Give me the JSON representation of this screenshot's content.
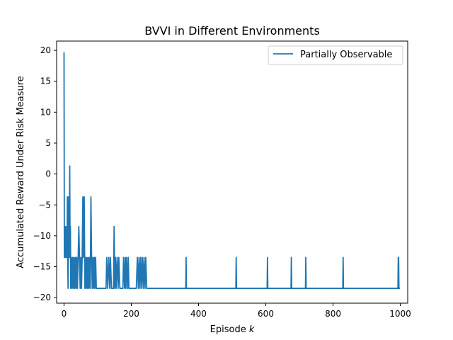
{
  "chart_data": {
    "type": "line",
    "title": "BVVI in Different Environments",
    "xlabel_prefix": "Episode ",
    "xlabel_var": "k",
    "ylabel": "Accumulated Reward Under Risk Measure",
    "xlim": [
      -22,
      1022
    ],
    "ylim": [
      -20.9,
      21.5
    ],
    "xticks": [
      0,
      200,
      400,
      600,
      800,
      1000
    ],
    "yticks": [
      20,
      15,
      10,
      5,
      0,
      -5,
      -10,
      -15,
      -20
    ],
    "xtick_labels": [
      "0",
      "200",
      "400",
      "600",
      "800",
      "1000"
    ],
    "ytick_labels": [
      "20",
      "15",
      "10",
      "5",
      "0",
      "−5",
      "−10",
      "−15",
      "−20"
    ],
    "grid": false,
    "legend_position": "upper right",
    "series": [
      {
        "name": "Partially Observable",
        "color": "#1f77b4",
        "points": [
          [
            0,
            19.7
          ],
          [
            1,
            -13.5
          ],
          [
            2,
            -9
          ],
          [
            3,
            -13.5
          ],
          [
            4,
            -8.5
          ],
          [
            5,
            -13.5
          ],
          [
            6,
            -11
          ],
          [
            7,
            -13.5
          ],
          [
            8,
            -8.5
          ],
          [
            9,
            -13.5
          ],
          [
            10,
            -3.7
          ],
          [
            11,
            -13.5
          ],
          [
            12,
            -18.5
          ],
          [
            13,
            -13.5
          ],
          [
            14,
            -3.7
          ],
          [
            15,
            -13.5
          ],
          [
            16,
            -8.5
          ],
          [
            17,
            1.3
          ],
          [
            18,
            -13.5
          ],
          [
            19,
            -8.5
          ],
          [
            20,
            -18.5
          ],
          [
            22,
            -13.5
          ],
          [
            24,
            -18.5
          ],
          [
            26,
            -13.5
          ],
          [
            28,
            -18.5
          ],
          [
            30,
            -13.5
          ],
          [
            32,
            -18.5
          ],
          [
            34,
            -13.5
          ],
          [
            36,
            -18.5
          ],
          [
            38,
            -13.5
          ],
          [
            40,
            -18.5
          ],
          [
            42,
            -13.5
          ],
          [
            44,
            -8.5
          ],
          [
            46,
            -13.5
          ],
          [
            48,
            -18.5
          ],
          [
            50,
            -13.5
          ],
          [
            52,
            -18.5
          ],
          [
            54,
            -13.5
          ],
          [
            56,
            -3.7
          ],
          [
            58,
            -13.5
          ],
          [
            60,
            -3.7
          ],
          [
            62,
            -18.5
          ],
          [
            64,
            -13.5
          ],
          [
            66,
            -18.5
          ],
          [
            68,
            -13.5
          ],
          [
            70,
            -18.5
          ],
          [
            72,
            -13.5
          ],
          [
            74,
            -18.5
          ],
          [
            76,
            -13.5
          ],
          [
            78,
            -18.5
          ],
          [
            80,
            -3.7
          ],
          [
            82,
            -13.5
          ],
          [
            84,
            -18.5
          ],
          [
            86,
            -13.5
          ],
          [
            88,
            -18.5
          ],
          [
            90,
            -13.5
          ],
          [
            92,
            -18.5
          ],
          [
            94,
            -13.5
          ],
          [
            96,
            -18.5
          ],
          [
            125,
            -18.5
          ],
          [
            127,
            -13.5
          ],
          [
            130,
            -18.5
          ],
          [
            133,
            -13.5
          ],
          [
            136,
            -18.5
          ],
          [
            138,
            -13.5
          ],
          [
            141,
            -18.5
          ],
          [
            147,
            -18.5
          ],
          [
            149,
            -8.5
          ],
          [
            151,
            -18.5
          ],
          [
            153,
            -13.5
          ],
          [
            155,
            -18.5
          ],
          [
            158,
            -13.5
          ],
          [
            161,
            -18.5
          ],
          [
            163,
            -13.5
          ],
          [
            166,
            -18.5
          ],
          [
            175,
            -18.5
          ],
          [
            177,
            -13.5
          ],
          [
            180,
            -18.5
          ],
          [
            182,
            -13.5
          ],
          [
            184,
            -18.5
          ],
          [
            186,
            -13.5
          ],
          [
            189,
            -18.5
          ],
          [
            191,
            -13.5
          ],
          [
            193,
            -18.5
          ],
          [
            215,
            -18.5
          ],
          [
            218,
            -13.5
          ],
          [
            221,
            -18.5
          ],
          [
            223,
            -13.5
          ],
          [
            226,
            -18.5
          ],
          [
            228,
            -13.5
          ],
          [
            231,
            -18.5
          ],
          [
            233,
            -13.5
          ],
          [
            236,
            -18.5
          ],
          [
            238,
            -13.5
          ],
          [
            241,
            -18.5
          ],
          [
            243,
            -13.5
          ],
          [
            246,
            -18.5
          ],
          [
            362,
            -18.5
          ],
          [
            363,
            -13.5
          ],
          [
            364,
            -18.5
          ],
          [
            511,
            -18.5
          ],
          [
            512,
            -13.5
          ],
          [
            513,
            -18.5
          ],
          [
            604,
            -18.5
          ],
          [
            605,
            -13.5
          ],
          [
            606,
            -18.5
          ],
          [
            675,
            -18.5
          ],
          [
            676,
            -13.5
          ],
          [
            677,
            -18.5
          ],
          [
            718,
            -18.5
          ],
          [
            719,
            -13.5
          ],
          [
            720,
            -18.5
          ],
          [
            829,
            -18.5
          ],
          [
            830,
            -13.5
          ],
          [
            831,
            -18.5
          ],
          [
            993,
            -18.5
          ],
          [
            994,
            -13.5
          ],
          [
            995,
            -13.5
          ],
          [
            996,
            -18.5
          ],
          [
            999,
            -18.5
          ]
        ]
      }
    ]
  }
}
